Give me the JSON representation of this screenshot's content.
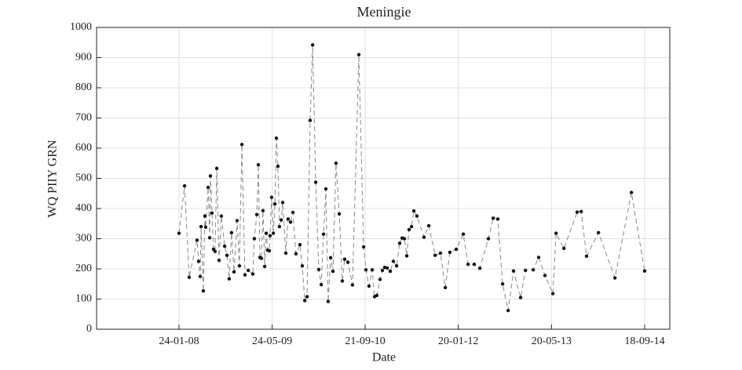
{
  "chart_data": {
    "type": "line",
    "title": "Meningie",
    "xlabel": "Date",
    "ylabel": "WQ PIIY GRN",
    "x": [
      "2008-01-24",
      "2008-02-22",
      "2008-03-17",
      "2008-04-27",
      "2008-05-05",
      "2008-05-14",
      "2008-05-18",
      "2008-05-30",
      "2008-06-07",
      "2008-06-11",
      "2008-06-24",
      "2008-07-02",
      "2008-07-06",
      "2008-07-14",
      "2008-07-22",
      "2008-07-30",
      "2008-08-08",
      "2008-08-20",
      "2008-09-01",
      "2008-09-18",
      "2008-09-30",
      "2008-10-12",
      "2008-10-24",
      "2008-11-06",
      "2008-11-22",
      "2008-12-04",
      "2008-12-17",
      "2009-01-02",
      "2009-01-19",
      "2009-02-12",
      "2009-02-20",
      "2009-03-05",
      "2009-03-13",
      "2009-03-21",
      "2009-03-29",
      "2009-04-06",
      "2009-04-15",
      "2009-04-23",
      "2009-05-01",
      "2009-05-09",
      "2009-05-13",
      "2009-05-21",
      "2009-05-30",
      "2009-06-07",
      "2009-06-15",
      "2009-06-23",
      "2009-07-01",
      "2009-07-10",
      "2009-07-18",
      "2009-08-03",
      "2009-08-15",
      "2009-08-28",
      "2009-09-09",
      "2009-09-25",
      "2009-10-16",
      "2009-10-28",
      "2009-11-10",
      "2009-11-22",
      "2009-12-08",
      "2009-12-21",
      "2010-01-06",
      "2010-01-22",
      "2010-02-04",
      "2010-02-16",
      "2010-02-28",
      "2010-03-12",
      "2010-03-25",
      "2010-04-06",
      "2010-04-22",
      "2010-05-09",
      "2010-05-25",
      "2010-06-06",
      "2010-06-23",
      "2010-07-17",
      "2010-08-19",
      "2010-09-13",
      "2010-09-25",
      "2010-10-11",
      "2010-10-28",
      "2010-11-09",
      "2010-11-21",
      "2010-12-08",
      "2010-12-20",
      "2011-01-01",
      "2011-01-14",
      "2011-01-30",
      "2011-02-15",
      "2011-03-04",
      "2011-03-20",
      "2011-04-02",
      "2011-04-14",
      "2011-04-26",
      "2011-05-08",
      "2011-05-21",
      "2011-06-02",
      "2011-06-18",
      "2011-07-25",
      "2011-08-19",
      "2011-09-21",
      "2011-10-19",
      "2011-11-13",
      "2011-12-07",
      "2012-01-09",
      "2012-02-15",
      "2012-03-11",
      "2012-04-12",
      "2012-05-11",
      "2012-06-25",
      "2012-07-20",
      "2012-08-13",
      "2012-09-07",
      "2012-10-06",
      "2012-11-03",
      "2012-12-10",
      "2013-01-04",
      "2013-02-14",
      "2013-03-14",
      "2013-04-16",
      "2013-05-27",
      "2013-06-13",
      "2013-07-24",
      "2013-10-01",
      "2013-10-22",
      "2013-11-19",
      "2014-01-20",
      "2014-04-16",
      "2014-07-11",
      "2014-09-18"
    ],
    "values": [
      318,
      475,
      172,
      295,
      225,
      175,
      340,
      127,
      375,
      338,
      470,
      303,
      508,
      385,
      265,
      258,
      533,
      228,
      375,
      275,
      245,
      167,
      320,
      190,
      360,
      210,
      612,
      180,
      195,
      183,
      300,
      380,
      545,
      238,
      235,
      393,
      208,
      318,
      262,
      260,
      310,
      437,
      318,
      415,
      633,
      540,
      340,
      362,
      420,
      252,
      365,
      355,
      387,
      250,
      280,
      210,
      95,
      108,
      692,
      942,
      487,
      198,
      148,
      315,
      465,
      92,
      237,
      192,
      550,
      382,
      160,
      232,
      222,
      147,
      910,
      273,
      197,
      143,
      197,
      108,
      112,
      165,
      195,
      205,
      203,
      192,
      225,
      210,
      285,
      302,
      300,
      243,
      330,
      340,
      392,
      375,
      305,
      343,
      245,
      252,
      138,
      255,
      265,
      315,
      215,
      215,
      202,
      300,
      368,
      365,
      150,
      62,
      193,
      105,
      195,
      197,
      238,
      178,
      118,
      318,
      268,
      388,
      390,
      242,
      320,
      170,
      453,
      193
    ],
    "color": "#888888",
    "marker_color": "#111111",
    "xlim": [
      "2006-11-20",
      "2015-01-27"
    ],
    "xticks": [
      {
        "value": "2008-01-24",
        "label": "24-01-08"
      },
      {
        "value": "2009-05-24",
        "label": "24-05-09"
      },
      {
        "value": "2010-09-21",
        "label": "21-09-10"
      },
      {
        "value": "2012-01-20",
        "label": "20-01-12"
      },
      {
        "value": "2013-05-20",
        "label": "20-05-13"
      },
      {
        "value": "2014-09-18",
        "label": "18-09-14"
      }
    ],
    "ylim": [
      0,
      1000
    ],
    "yticks": [
      0,
      100,
      200,
      300,
      400,
      500,
      600,
      700,
      800,
      900,
      1000
    ],
    "grid": true
  }
}
